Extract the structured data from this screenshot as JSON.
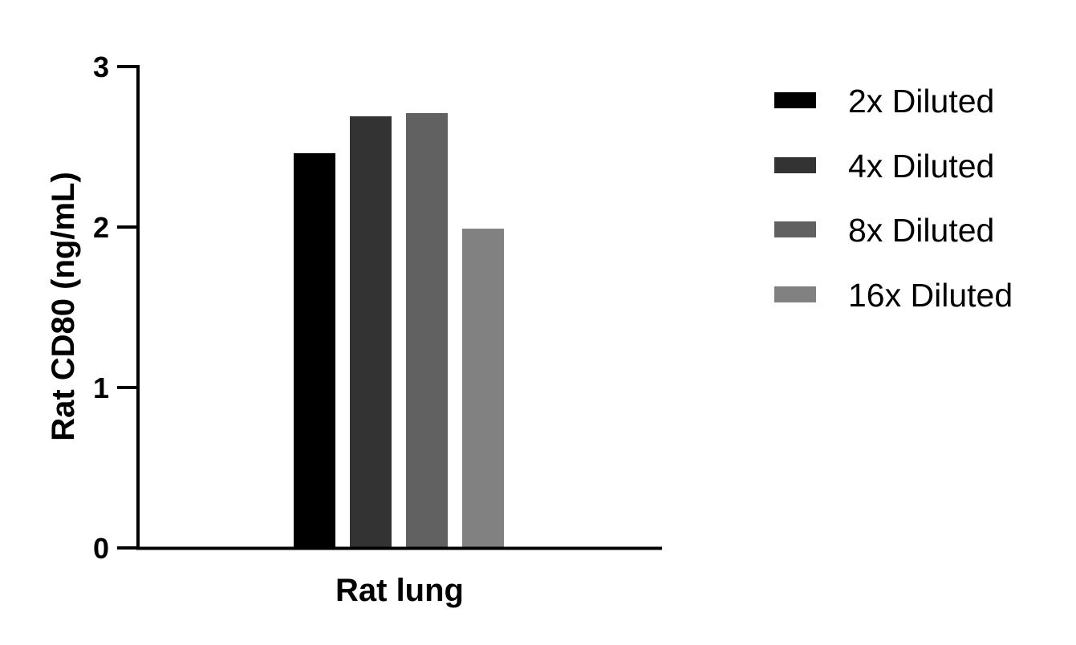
{
  "chart_data": {
    "type": "bar",
    "title": "",
    "xlabel": "Rat lung",
    "ylabel": "Rat CD80 (ng/mL)",
    "categories": [
      "Rat lung"
    ],
    "series": [
      {
        "name": "2x Diluted",
        "values": [
          2.46
        ],
        "color": "#000000"
      },
      {
        "name": "4x Diluted",
        "values": [
          2.69
        ],
        "color": "#333333"
      },
      {
        "name": "8x Diluted",
        "values": [
          2.71
        ],
        "color": "#616161"
      },
      {
        "name": "16x Diluted",
        "values": [
          1.99
        ],
        "color": "#818181"
      }
    ],
    "ylim": [
      0,
      3
    ],
    "yticks": [
      "0",
      "1",
      "2",
      "3"
    ],
    "grid": false,
    "legend_position": "right"
  }
}
